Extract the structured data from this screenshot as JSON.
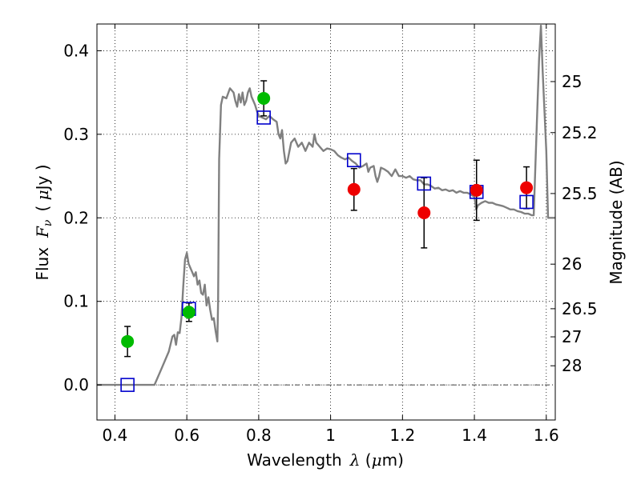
{
  "chart_data": {
    "type": "scatter",
    "xlabel": {
      "text": "Wavelength",
      "symbol": "λ",
      "unit_open": " (",
      "unit_mu": "μ",
      "unit_rest": "m)"
    },
    "ylabel": {
      "text": "Flux",
      "symbol_main": "F",
      "symbol_sub": "ν",
      "unit_open": "( ",
      "unit_mu": "μ",
      "unit_rest": "Jy )"
    },
    "y2label": "Magnitude (AB)",
    "xlim": [
      0.35,
      1.625
    ],
    "ylim": [
      -0.042,
      0.432
    ],
    "x_ticks": [
      0.4,
      0.6,
      0.8,
      1.0,
      1.2,
      1.4,
      1.6
    ],
    "x_tick_labels": [
      "0.4",
      "0.6",
      "0.8",
      "1",
      "1.2",
      "1.4",
      "1.6"
    ],
    "y_ticks": [
      0.0,
      0.1,
      0.2,
      0.3,
      0.4
    ],
    "y_tick_labels": [
      "0.0",
      "0.1",
      "0.2",
      "0.3",
      "0.4"
    ],
    "mag_ticks": [
      25,
      25.2,
      25.5,
      26,
      26.5,
      27,
      28
    ],
    "mag_tick_labels": [
      "25",
      "25.2",
      "25.5",
      "26",
      "26.5",
      "27",
      "28"
    ],
    "grid": true,
    "zero_line": true,
    "colors": {
      "model": "#808080",
      "green": "#00bb00",
      "red": "#ee0000",
      "square": "#0000cc",
      "errbar": "#000000"
    },
    "series": [
      {
        "role": "model_spectrum",
        "kind": "line",
        "points": [
          [
            0.35,
            0.0
          ],
          [
            0.5,
            0.0
          ],
          [
            0.51,
            0.0
          ],
          [
            0.53,
            0.02
          ],
          [
            0.55,
            0.04
          ],
          [
            0.56,
            0.058
          ],
          [
            0.565,
            0.06
          ],
          [
            0.57,
            0.048
          ],
          [
            0.575,
            0.063
          ],
          [
            0.58,
            0.062
          ],
          [
            0.585,
            0.08
          ],
          [
            0.59,
            0.118
          ],
          [
            0.595,
            0.15
          ],
          [
            0.6,
            0.158
          ],
          [
            0.605,
            0.145
          ],
          [
            0.61,
            0.14
          ],
          [
            0.615,
            0.135
          ],
          [
            0.62,
            0.13
          ],
          [
            0.625,
            0.135
          ],
          [
            0.63,
            0.12
          ],
          [
            0.635,
            0.125
          ],
          [
            0.64,
            0.11
          ],
          [
            0.645,
            0.108
          ],
          [
            0.65,
            0.12
          ],
          [
            0.655,
            0.095
          ],
          [
            0.66,
            0.105
          ],
          [
            0.665,
            0.09
          ],
          [
            0.67,
            0.078
          ],
          [
            0.675,
            0.08
          ],
          [
            0.68,
            0.065
          ],
          [
            0.685,
            0.052
          ],
          [
            0.687,
            0.1
          ],
          [
            0.69,
            0.27
          ],
          [
            0.695,
            0.335
          ],
          [
            0.7,
            0.345
          ],
          [
            0.71,
            0.343
          ],
          [
            0.72,
            0.355
          ],
          [
            0.73,
            0.35
          ],
          [
            0.735,
            0.34
          ],
          [
            0.74,
            0.333
          ],
          [
            0.745,
            0.348
          ],
          [
            0.75,
            0.338
          ],
          [
            0.755,
            0.35
          ],
          [
            0.76,
            0.335
          ],
          [
            0.765,
            0.34
          ],
          [
            0.77,
            0.35
          ],
          [
            0.775,
            0.355
          ],
          [
            0.78,
            0.345
          ],
          [
            0.785,
            0.34
          ],
          [
            0.79,
            0.335
          ],
          [
            0.795,
            0.328
          ],
          [
            0.8,
            0.322
          ],
          [
            0.81,
            0.32
          ],
          [
            0.82,
            0.318
          ],
          [
            0.83,
            0.322
          ],
          [
            0.84,
            0.318
          ],
          [
            0.85,
            0.315
          ],
          [
            0.855,
            0.3
          ],
          [
            0.86,
            0.295
          ],
          [
            0.865,
            0.305
          ],
          [
            0.87,
            0.28
          ],
          [
            0.875,
            0.265
          ],
          [
            0.88,
            0.268
          ],
          [
            0.89,
            0.29
          ],
          [
            0.9,
            0.295
          ],
          [
            0.91,
            0.285
          ],
          [
            0.92,
            0.29
          ],
          [
            0.93,
            0.28
          ],
          [
            0.94,
            0.29
          ],
          [
            0.95,
            0.285
          ],
          [
            0.955,
            0.3
          ],
          [
            0.96,
            0.29
          ],
          [
            0.97,
            0.285
          ],
          [
            0.98,
            0.28
          ],
          [
            0.99,
            0.283
          ],
          [
            1.0,
            0.282
          ],
          [
            1.01,
            0.28
          ],
          [
            1.02,
            0.275
          ],
          [
            1.03,
            0.272
          ],
          [
            1.04,
            0.27
          ],
          [
            1.05,
            0.272
          ],
          [
            1.06,
            0.268
          ],
          [
            1.07,
            0.265
          ],
          [
            1.08,
            0.26
          ],
          [
            1.09,
            0.262
          ],
          [
            1.1,
            0.265
          ],
          [
            1.105,
            0.255
          ],
          [
            1.11,
            0.26
          ],
          [
            1.12,
            0.262
          ],
          [
            1.125,
            0.25
          ],
          [
            1.13,
            0.243
          ],
          [
            1.135,
            0.25
          ],
          [
            1.14,
            0.26
          ],
          [
            1.15,
            0.258
          ],
          [
            1.16,
            0.255
          ],
          [
            1.17,
            0.25
          ],
          [
            1.18,
            0.258
          ],
          [
            1.19,
            0.25
          ],
          [
            1.2,
            0.25
          ],
          [
            1.21,
            0.248
          ],
          [
            1.22,
            0.25
          ],
          [
            1.23,
            0.246
          ],
          [
            1.24,
            0.245
          ],
          [
            1.25,
            0.245
          ],
          [
            1.26,
            0.24
          ],
          [
            1.27,
            0.24
          ],
          [
            1.28,
            0.238
          ],
          [
            1.29,
            0.235
          ],
          [
            1.3,
            0.236
          ],
          [
            1.31,
            0.233
          ],
          [
            1.32,
            0.234
          ],
          [
            1.33,
            0.232
          ],
          [
            1.34,
            0.233
          ],
          [
            1.35,
            0.23
          ],
          [
            1.36,
            0.232
          ],
          [
            1.37,
            0.23
          ],
          [
            1.38,
            0.23
          ],
          [
            1.39,
            0.228
          ],
          [
            1.4,
            0.225
          ],
          [
            1.405,
            0.21
          ],
          [
            1.41,
            0.215
          ],
          [
            1.42,
            0.218
          ],
          [
            1.43,
            0.22
          ],
          [
            1.44,
            0.218
          ],
          [
            1.45,
            0.218
          ],
          [
            1.46,
            0.216
          ],
          [
            1.47,
            0.215
          ],
          [
            1.48,
            0.214
          ],
          [
            1.49,
            0.212
          ],
          [
            1.5,
            0.21
          ],
          [
            1.51,
            0.21
          ],
          [
            1.52,
            0.208
          ],
          [
            1.53,
            0.207
          ],
          [
            1.54,
            0.205
          ],
          [
            1.55,
            0.205
          ],
          [
            1.56,
            0.203
          ],
          [
            1.565,
            0.203
          ],
          [
            1.575,
            0.33
          ],
          [
            1.58,
            0.39
          ],
          [
            1.585,
            0.43
          ],
          [
            1.59,
            0.375
          ],
          [
            1.6,
            0.28
          ],
          [
            1.605,
            0.2
          ],
          [
            1.625,
            0.2
          ]
        ]
      },
      {
        "role": "green_points",
        "kind": "errorbar",
        "points": [
          {
            "x": 0.435,
            "y": 0.052,
            "yerr_low": 0.018,
            "yerr_high": 0.018
          },
          {
            "x": 0.606,
            "y": 0.087,
            "yerr_low": 0.011,
            "yerr_high": 0.011
          },
          {
            "x": 0.814,
            "y": 0.343,
            "yerr_low": 0.021,
            "yerr_high": 0.021
          }
        ]
      },
      {
        "role": "red_points",
        "kind": "errorbar",
        "points": [
          {
            "x": 1.065,
            "y": 0.234,
            "yerr_low": 0.025,
            "yerr_high": 0.025
          },
          {
            "x": 1.26,
            "y": 0.206,
            "yerr_low": 0.042,
            "yerr_high": 0.042
          },
          {
            "x": 1.406,
            "y": 0.233,
            "yerr_low": 0.036,
            "yerr_high": 0.036
          },
          {
            "x": 1.545,
            "y": 0.236,
            "yerr_low": 0.025,
            "yerr_high": 0.025
          }
        ]
      },
      {
        "role": "model_photometry_squares",
        "kind": "marker",
        "points": [
          {
            "x": 0.435,
            "y": 0.0
          },
          {
            "x": 0.606,
            "y": 0.091
          },
          {
            "x": 0.814,
            "y": 0.32
          },
          {
            "x": 1.065,
            "y": 0.269
          },
          {
            "x": 1.26,
            "y": 0.241
          },
          {
            "x": 1.406,
            "y": 0.231
          },
          {
            "x": 1.545,
            "y": 0.219
          }
        ]
      }
    ]
  }
}
